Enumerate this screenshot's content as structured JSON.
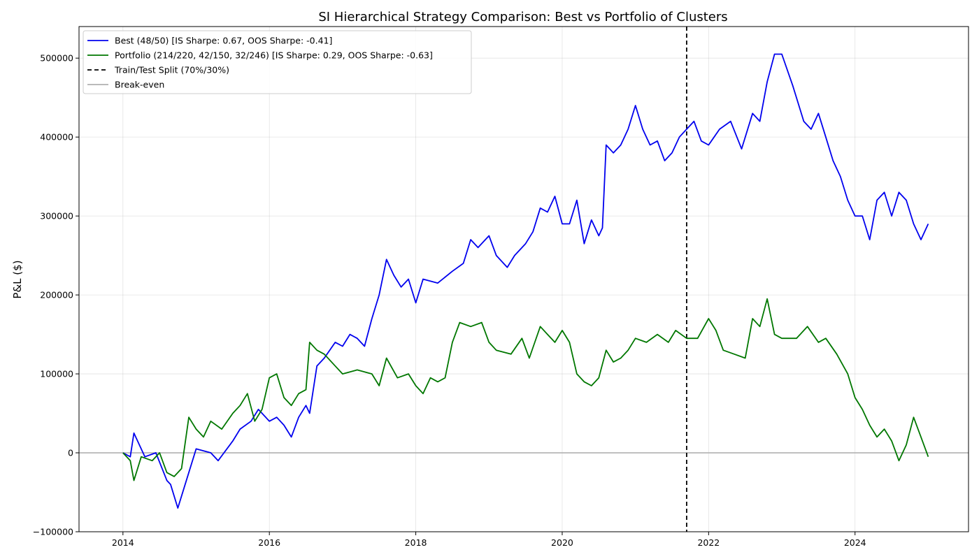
{
  "chart_data": {
    "type": "line",
    "title": "SI Hierarchical Strategy Comparison: Best vs Portfolio of Clusters",
    "xlabel": "",
    "ylabel": "P&L ($)",
    "xlim": [
      2013.4,
      2025.55
    ],
    "ylim": [
      -100000,
      540000
    ],
    "x_ticks": [
      2014,
      2016,
      2018,
      2020,
      2022,
      2024
    ],
    "x_tick_labels": [
      "2014",
      "2016",
      "2018",
      "2020",
      "2022",
      "2024"
    ],
    "y_ticks": [
      -100000,
      0,
      100000,
      200000,
      300000,
      400000,
      500000
    ],
    "y_tick_labels": [
      "−100000",
      "0",
      "100000",
      "200000",
      "300000",
      "400000",
      "500000"
    ],
    "grid": true,
    "legend_position": "top-left",
    "split_line": {
      "name": "Train/Test Split (70%/30%)",
      "x": 2021.7,
      "color": "#000000",
      "style": "dashed"
    },
    "breakeven_line": {
      "name": "Break-even",
      "y": 0,
      "color": "#b0b0b0"
    },
    "series": [
      {
        "name": "Best (48/50) [IS Sharpe: 0.67, OOS Sharpe: -0.41]",
        "color": "#0000ee",
        "x": [
          2014.0,
          2014.1,
          2014.15,
          2014.3,
          2014.45,
          2014.6,
          2014.65,
          2014.75,
          2014.9,
          2015.0,
          2015.2,
          2015.3,
          2015.5,
          2015.6,
          2015.75,
          2015.85,
          2016.0,
          2016.1,
          2016.2,
          2016.3,
          2016.4,
          2016.5,
          2016.55,
          2016.65,
          2016.75,
          2016.9,
          2017.0,
          2017.1,
          2017.2,
          2017.3,
          2017.4,
          2017.5,
          2017.6,
          2017.7,
          2017.8,
          2017.9,
          2018.0,
          2018.1,
          2018.3,
          2018.5,
          2018.65,
          2018.75,
          2018.85,
          2019.0,
          2019.1,
          2019.25,
          2019.35,
          2019.5,
          2019.6,
          2019.7,
          2019.8,
          2019.9,
          2020.0,
          2020.1,
          2020.2,
          2020.3,
          2020.4,
          2020.5,
          2020.55,
          2020.6,
          2020.7,
          2020.8,
          2020.9,
          2021.0,
          2021.1,
          2021.2,
          2021.3,
          2021.4,
          2021.5,
          2021.6,
          2021.7,
          2021.8,
          2021.9,
          2022.0,
          2022.15,
          2022.3,
          2022.45,
          2022.6,
          2022.7,
          2022.8,
          2022.9,
          2023.0,
          2023.15,
          2023.3,
          2023.4,
          2023.5,
          2023.6,
          2023.7,
          2023.8,
          2023.9,
          2024.0,
          2024.1,
          2024.2,
          2024.3,
          2024.4,
          2024.5,
          2024.6,
          2024.7,
          2024.8,
          2024.9,
          2025.0
        ],
        "values": [
          0,
          -5000,
          25000,
          -5000,
          0,
          -35000,
          -40000,
          -70000,
          -25000,
          5000,
          0,
          -10000,
          15000,
          30000,
          40000,
          55000,
          40000,
          45000,
          35000,
          20000,
          45000,
          60000,
          50000,
          110000,
          120000,
          140000,
          135000,
          150000,
          145000,
          135000,
          170000,
          200000,
          245000,
          225000,
          210000,
          220000,
          190000,
          220000,
          215000,
          230000,
          240000,
          270000,
          260000,
          275000,
          250000,
          235000,
          250000,
          265000,
          280000,
          310000,
          305000,
          325000,
          290000,
          290000,
          320000,
          265000,
          295000,
          275000,
          285000,
          390000,
          380000,
          390000,
          410000,
          440000,
          410000,
          390000,
          395000,
          370000,
          380000,
          400000,
          410000,
          420000,
          395000,
          390000,
          410000,
          420000,
          385000,
          430000,
          420000,
          470000,
          505000,
          505000,
          465000,
          420000,
          410000,
          430000,
          400000,
          370000,
          350000,
          320000,
          300000,
          300000,
          270000,
          320000,
          330000,
          300000,
          330000,
          320000,
          290000,
          270000,
          290000
        ]
      },
      {
        "name": "Portfolio (214/220, 42/150, 32/246) [IS Sharpe: 0.29, OOS Sharpe: -0.63]",
        "color": "#007700",
        "x": [
          2014.0,
          2014.1,
          2014.15,
          2014.25,
          2014.4,
          2014.5,
          2014.6,
          2014.7,
          2014.8,
          2014.9,
          2015.0,
          2015.1,
          2015.2,
          2015.35,
          2015.5,
          2015.6,
          2015.7,
          2015.8,
          2015.9,
          2016.0,
          2016.1,
          2016.2,
          2016.3,
          2016.4,
          2016.5,
          2016.55,
          2016.65,
          2016.75,
          2016.9,
          2017.0,
          2017.2,
          2017.4,
          2017.5,
          2017.6,
          2017.75,
          2017.9,
          2018.0,
          2018.1,
          2018.2,
          2018.3,
          2018.4,
          2018.5,
          2018.6,
          2018.75,
          2018.9,
          2019.0,
          2019.1,
          2019.3,
          2019.45,
          2019.55,
          2019.7,
          2019.8,
          2019.9,
          2020.0,
          2020.1,
          2020.2,
          2020.3,
          2020.4,
          2020.5,
          2020.6,
          2020.7,
          2020.8,
          2020.9,
          2021.0,
          2021.15,
          2021.3,
          2021.45,
          2021.55,
          2021.7,
          2021.85,
          2022.0,
          2022.1,
          2022.2,
          2022.35,
          2022.5,
          2022.6,
          2022.7,
          2022.8,
          2022.9,
          2023.0,
          2023.2,
          2023.35,
          2023.5,
          2023.6,
          2023.75,
          2023.9,
          2024.0,
          2024.1,
          2024.2,
          2024.3,
          2024.4,
          2024.5,
          2024.6,
          2024.7,
          2024.8,
          2024.9,
          2025.0
        ],
        "values": [
          0,
          -10000,
          -35000,
          -5000,
          -10000,
          0,
          -25000,
          -30000,
          -20000,
          45000,
          30000,
          20000,
          40000,
          30000,
          50000,
          60000,
          75000,
          40000,
          55000,
          95000,
          100000,
          70000,
          60000,
          75000,
          80000,
          140000,
          130000,
          125000,
          110000,
          100000,
          105000,
          100000,
          85000,
          120000,
          95000,
          100000,
          85000,
          75000,
          95000,
          90000,
          95000,
          140000,
          165000,
          160000,
          165000,
          140000,
          130000,
          125000,
          145000,
          120000,
          160000,
          150000,
          140000,
          155000,
          140000,
          100000,
          90000,
          85000,
          95000,
          130000,
          115000,
          120000,
          130000,
          145000,
          140000,
          150000,
          140000,
          155000,
          145000,
          145000,
          170000,
          155000,
          130000,
          125000,
          120000,
          170000,
          160000,
          195000,
          150000,
          145000,
          145000,
          160000,
          140000,
          145000,
          125000,
          100000,
          70000,
          55000,
          35000,
          20000,
          30000,
          15000,
          -10000,
          10000,
          45000,
          20000,
          -5000
        ]
      }
    ]
  },
  "legend": {
    "items": [
      {
        "label": "Best (48/50) [IS Sharpe: 0.67, OOS Sharpe: -0.41]",
        "color": "#0000ee",
        "style": "solid"
      },
      {
        "label": "Portfolio (214/220, 42/150, 32/246) [IS Sharpe: 0.29, OOS Sharpe: -0.63]",
        "color": "#007700",
        "style": "solid"
      },
      {
        "label": "Train/Test Split (70%/30%)",
        "color": "#000000",
        "style": "dashed"
      },
      {
        "label": "Break-even",
        "color": "#b0b0b0",
        "style": "solid"
      }
    ]
  }
}
